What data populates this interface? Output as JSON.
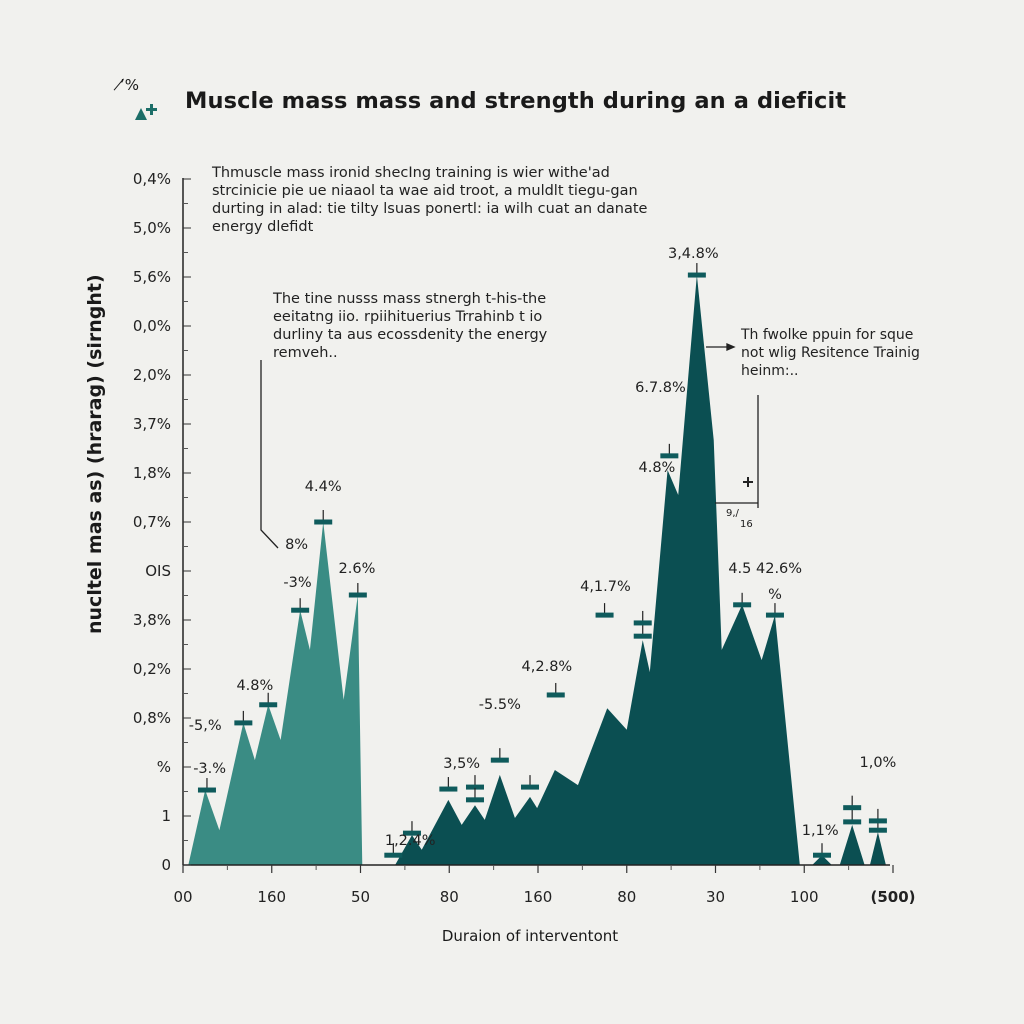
{
  "header": {
    "title": "Muscle mass mass and strength during an a dieficit",
    "corner_text": "’̸%",
    "corner_icon": "triangle-plus-icon"
  },
  "annotations": {
    "top_note": [
      "Thmuscle mass ironid shecIng training is wier withe'ad",
      "strcinicie pie ue niaaol ta wae aid troot, a muldlt tiegu-gan",
      "durting in alad: tie tilty lsuas ponertl: ia wilh cuat an danate",
      "energy dlefidt"
    ],
    "mid_note": [
      "The tine nusss mass stnergh t-his-the",
      "eeitatng  iio. rpiihituerius Trrahinb t io",
      "durliny ta aus ecossdenity  the energy",
      "remveh.."
    ],
    "right_note": [
      "Th fwolke ppuin for sque",
      "not wlig Resitence Trainig",
      "heinm:.."
    ],
    "small_mark": [
      "9,/",
      "16"
    ]
  },
  "colors": {
    "series_light": "#3a8c84",
    "series_dark": "#0b4f52",
    "marker": "#0f5b5c",
    "axis": "#222222"
  },
  "chart_data": {
    "type": "area",
    "title": "Muscle mass mass and strength during an a dieficit",
    "xlabel": "Duraion of interventont",
    "ylabel": "nucltel mas as) (hrarag) (sirnght)",
    "x_tick_labels": [
      "00",
      "160",
      "50",
      "80",
      "160",
      "80",
      "30",
      "100",
      "(500)"
    ],
    "y_tick_labels": [
      "0",
      "1",
      "%",
      "0,8%",
      "0,2%",
      "3,8%",
      "OIS",
      "0,7%",
      "1,8%",
      "3,7%",
      "2,0%",
      "0,0%",
      "5,6%",
      "5,0%",
      "0,4%"
    ],
    "xlim": [
      0,
      8
    ],
    "ylim": [
      0,
      14
    ],
    "grid": false,
    "series": [
      {
        "points": [
          [
            0.06,
            0
          ],
          [
            0.25,
            1.53
          ],
          [
            0.41,
            0.71
          ],
          [
            0.68,
            2.9
          ],
          [
            0.81,
            2.14
          ],
          [
            0.96,
            3.27
          ],
          [
            1.1,
            2.55
          ],
          [
            1.32,
            5.2
          ],
          [
            1.43,
            4.39
          ],
          [
            1.58,
            7.0
          ],
          [
            1.81,
            3.37
          ],
          [
            1.97,
            5.51
          ],
          [
            2.02,
            0
          ]
        ]
      },
      {
        "points": [
          [
            2.39,
            0
          ],
          [
            2.58,
            0.61
          ],
          [
            2.69,
            0.31
          ],
          [
            2.99,
            1.33
          ],
          [
            3.14,
            0.82
          ],
          [
            3.29,
            1.22
          ],
          [
            3.4,
            0.92
          ],
          [
            3.57,
            1.84
          ],
          [
            3.74,
            0.96
          ],
          [
            3.91,
            1.39
          ],
          [
            3.99,
            1.16
          ],
          [
            4.19,
            1.94
          ],
          [
            4.45,
            1.63
          ],
          [
            4.78,
            3.2
          ],
          [
            5.0,
            2.76
          ],
          [
            5.18,
            4.59
          ],
          [
            5.26,
            3.94
          ],
          [
            5.46,
            8.06
          ],
          [
            5.58,
            7.55
          ],
          [
            5.79,
            12.04
          ],
          [
            5.98,
            8.67
          ],
          [
            6.07,
            4.39
          ],
          [
            6.3,
            5.31
          ],
          [
            6.52,
            4.18
          ],
          [
            6.67,
            5.1
          ],
          [
            6.95,
            0
          ],
          [
            7.09,
            0
          ],
          [
            7.2,
            0.2
          ],
          [
            7.31,
            0
          ],
          [
            7.4,
            0
          ],
          [
            7.54,
            0.82
          ],
          [
            7.68,
            0
          ],
          [
            7.74,
            0
          ],
          [
            7.83,
            0.67
          ],
          [
            7.92,
            0
          ]
        ]
      }
    ],
    "markers": [
      [
        0.27,
        1.53
      ],
      [
        0.68,
        2.9
      ],
      [
        0.96,
        3.27
      ],
      [
        1.32,
        5.2
      ],
      [
        1.58,
        7.0
      ],
      [
        1.97,
        5.51
      ],
      [
        2.37,
        0.2
      ],
      [
        2.58,
        0.65
      ],
      [
        2.99,
        1.55
      ],
      [
        3.29,
        1.59
      ],
      [
        3.29,
        1.33
      ],
      [
        3.57,
        2.14
      ],
      [
        3.91,
        1.59
      ],
      [
        4.2,
        3.47
      ],
      [
        4.75,
        5.1
      ],
      [
        5.18,
        4.67
      ],
      [
        5.18,
        4.94
      ],
      [
        5.48,
        8.35
      ],
      [
        5.79,
        12.04
      ],
      [
        6.3,
        5.31
      ],
      [
        6.67,
        5.1
      ],
      [
        7.2,
        0.2
      ],
      [
        7.54,
        0.88
      ],
      [
        7.54,
        1.17
      ],
      [
        7.83,
        0.71
      ],
      [
        7.83,
        0.9
      ]
    ],
    "data_labels": [
      {
        "text": "-3.%",
        "x": 0.3,
        "y": 1.88
      },
      {
        "text": "-5,%",
        "x": 0.25,
        "y": 2.76
      },
      {
        "text": "4.8%",
        "x": 0.81,
        "y": 3.57
      },
      {
        "text": "-3%",
        "x": 1.29,
        "y": 5.67
      },
      {
        "text": "8%",
        "x": 1.28,
        "y": 6.45
      },
      {
        "text": "4.4%",
        "x": 1.58,
        "y": 7.63
      },
      {
        "text": "2.6%",
        "x": 1.96,
        "y": 5.96
      },
      {
        "text": "1,2.4%",
        "x": 2.56,
        "y": 0.41
      },
      {
        "text": "3,5%",
        "x": 3.14,
        "y": 1.98
      },
      {
        "text": "-5.5%",
        "x": 3.57,
        "y": 3.18
      },
      {
        "text": "4,2.8%",
        "x": 4.1,
        "y": 3.96
      },
      {
        "text": "4,1.7%",
        "x": 4.76,
        "y": 5.59
      },
      {
        "text": "6.7.8%",
        "x": 5.38,
        "y": 9.65
      },
      {
        "text": "4.8%",
        "x": 5.34,
        "y": 8.02
      },
      {
        "text": "3,4.8%",
        "x": 5.75,
        "y": 12.39
      },
      {
        "text": "4.5 42.6%",
        "x": 6.56,
        "y": 5.96
      },
      {
        "text": "%",
        "x": 6.67,
        "y": 5.43
      },
      {
        "text": "1,1%",
        "x": 7.18,
        "y": 0.61
      },
      {
        "text": "1,0%",
        "x": 7.83,
        "y": 2.0
      }
    ]
  }
}
